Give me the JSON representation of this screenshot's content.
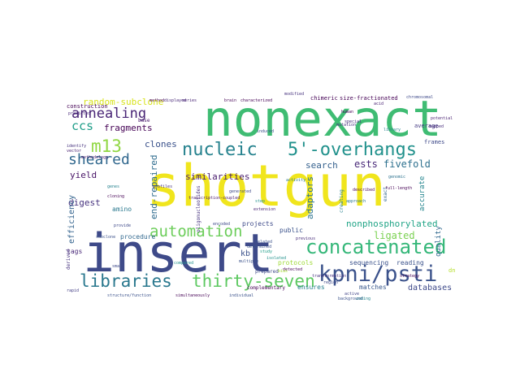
{
  "word_cloud": {
    "background": "#ffffff",
    "palette": "viridis",
    "words": [
      {
        "text": "shotgun",
        "color": "#f0e51d"
      },
      {
        "text": "nonexact",
        "color": "#3fbc73"
      },
      {
        "text": "insert",
        "color": "#3e4a89"
      },
      {
        "text": "5'-overhangs",
        "color": "#21918c"
      },
      {
        "text": "kpni/psti",
        "color": "#3b528b"
      },
      {
        "text": "concatenated",
        "color": "#35b779"
      },
      {
        "text": "libraries",
        "color": "#2a788e"
      },
      {
        "text": "thirty-seven",
        "color": "#5ec962"
      },
      {
        "text": "nucleic",
        "color": "#26828e"
      },
      {
        "text": "automation",
        "color": "#6ccd5a"
      },
      {
        "text": "m13",
        "color": "#90d743"
      },
      {
        "text": "annealing",
        "color": "#482475"
      },
      {
        "text": "sheared",
        "color": "#31688e"
      },
      {
        "text": "ccs",
        "color": "#1f9e89"
      },
      {
        "text": "adaptors",
        "color": "#2c728e"
      },
      {
        "text": "ligated",
        "color": "#7ad151"
      },
      {
        "text": "nonphosphorylated",
        "color": "#20a486"
      },
      {
        "text": "similarities",
        "color": "#481b6d"
      },
      {
        "text": "fragments",
        "color": "#440154"
      },
      {
        "text": "random-subclone",
        "color": "#d8e219"
      },
      {
        "text": "clones",
        "color": "#3b528b"
      },
      {
        "text": "end-repaired",
        "color": "#2f6c8e"
      },
      {
        "text": "digest",
        "color": "#46327e"
      },
      {
        "text": "yield",
        "color": "#481467"
      },
      {
        "text": "efficiency",
        "color": "#33638d"
      },
      {
        "text": "ests",
        "color": "#482878"
      },
      {
        "text": "fivefold",
        "color": "#2d708e"
      },
      {
        "text": "search",
        "color": "#34608d"
      },
      {
        "text": "databases",
        "color": "#3e4989"
      },
      {
        "text": "matches",
        "color": "#38588c"
      },
      {
        "text": "protocols",
        "color": "#a0da39"
      },
      {
        "text": "projects",
        "color": "#3e4a89"
      },
      {
        "text": "public",
        "color": "#3b528b"
      },
      {
        "text": "sequencing",
        "color": "#3b528b"
      },
      {
        "text": "reading",
        "color": "#3b528b"
      },
      {
        "text": "quality",
        "color": "#31688e"
      },
      {
        "text": "accurate",
        "color": "#25858e"
      },
      {
        "text": "ensures",
        "color": "#27808e"
      },
      {
        "text": "amino",
        "color": "#2a788e"
      },
      {
        "text": "procedure",
        "color": "#31688e"
      },
      {
        "text": "kb",
        "color": "#3b528b"
      },
      {
        "text": "tags",
        "color": "#482878"
      },
      {
        "text": "derived",
        "color": "#46327e"
      },
      {
        "text": "construction",
        "color": "#440154"
      },
      {
        "text": "frames",
        "color": "#3e4989"
      },
      {
        "text": "average",
        "color": "#443983"
      },
      {
        "text": "size-fractionated",
        "color": "#440154"
      },
      {
        "text": "chimeric",
        "color": "#440154"
      },
      {
        "text": "oligonucleotides",
        "color": "#46327e"
      },
      {
        "text": "dna",
        "color": "#b5de2b"
      },
      {
        "text": "complementary",
        "color": "#440154"
      },
      {
        "text": "prepared",
        "color": "#3e4a89"
      },
      {
        "text": "creating",
        "color": "#26828e"
      },
      {
        "text": "base",
        "color": "#48186a"
      },
      {
        "text": "exact",
        "color": "#31688e"
      },
      {
        "text": "chromosomal",
        "color": "#3e4989"
      },
      {
        "text": "potential",
        "color": "#481f70"
      },
      {
        "text": "mapped",
        "color": "#472d7b"
      },
      {
        "text": "human",
        "color": "#440154"
      },
      {
        "text": "special",
        "color": "#472c7a"
      },
      {
        "text": "acid",
        "color": "#482173"
      },
      {
        "text": "modified",
        "color": "#46327e"
      },
      {
        "text": "detected",
        "color": "#440154"
      },
      {
        "text": "genes",
        "color": "#26828e"
      },
      {
        "text": "multiple",
        "color": "#3b528b"
      },
      {
        "text": "generated",
        "color": "#3e4989"
      },
      {
        "text": "step",
        "color": "#21918c"
      },
      {
        "text": "background",
        "color": "#3b528b"
      },
      {
        "text": "strategy",
        "color": "#440154"
      },
      {
        "text": "previous",
        "color": "#472c7a"
      },
      {
        "text": "described",
        "color": "#440154"
      },
      {
        "text": "rapid",
        "color": "#433e85"
      },
      {
        "text": "predicted",
        "color": "#482878"
      },
      {
        "text": "identify",
        "color": "#46327e"
      },
      {
        "text": "vector",
        "color": "#482071"
      },
      {
        "text": "methodology",
        "color": "#481a6c"
      },
      {
        "text": "method",
        "color": "#440154"
      },
      {
        "text": "brain",
        "color": "#440154"
      },
      {
        "text": "series",
        "color": "#482475"
      },
      {
        "text": "displayed",
        "color": "#482878"
      },
      {
        "text": "characterized",
        "color": "#440154"
      },
      {
        "text": "transcription-coupled",
        "color": "#481769"
      },
      {
        "text": "structure/function",
        "color": "#3b528b"
      },
      {
        "text": "simultaneously",
        "color": "#440154"
      },
      {
        "text": "individual",
        "color": "#3b528b"
      },
      {
        "text": "coding",
        "color": "#25858e"
      },
      {
        "text": "full-length",
        "color": "#440154"
      },
      {
        "text": "genomic",
        "color": "#2c728e"
      },
      {
        "text": "extension",
        "color": "#482475"
      },
      {
        "text": "bias",
        "color": "#a5db36"
      },
      {
        "text": "active",
        "color": "#414487"
      },
      {
        "text": "related",
        "color": "#3b528b"
      },
      {
        "text": "encoded",
        "color": "#3e4a89"
      },
      {
        "text": "approach",
        "color": "#2a788e"
      },
      {
        "text": "provide",
        "color": "#3e4989"
      },
      {
        "text": "subclone",
        "color": "#3b528b"
      },
      {
        "text": "transformation",
        "color": "#46327e"
      },
      {
        "text": "isolated",
        "color": "#21918c"
      },
      {
        "text": "compared",
        "color": "#21918c"
      },
      {
        "text": "profiles",
        "color": "#46327e"
      },
      {
        "text": "determined",
        "color": "#3b528b"
      },
      {
        "text": "study",
        "color": "#1f9e89"
      },
      {
        "text": "mutation",
        "color": "#46327e"
      },
      {
        "text": "induced",
        "color": "#3b528b"
      },
      {
        "text": "cloning",
        "color": "#440154"
      },
      {
        "text": "library",
        "color": "#26828e"
      },
      {
        "text": "activity",
        "color": "#2a788e"
      },
      {
        "text": "region",
        "color": "#3e4989"
      },
      {
        "text": "small",
        "color": "#3e4a89"
      }
    ]
  }
}
